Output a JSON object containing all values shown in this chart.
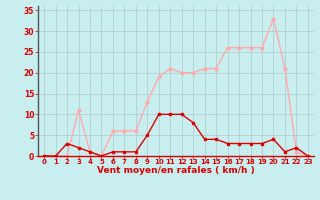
{
  "x": [
    0,
    1,
    2,
    3,
    4,
    5,
    6,
    7,
    8,
    9,
    10,
    11,
    12,
    13,
    14,
    15,
    16,
    17,
    18,
    19,
    20,
    21,
    22,
    23
  ],
  "wind_avg": [
    0,
    0,
    3,
    2,
    1,
    0,
    1,
    1,
    1,
    5,
    10,
    10,
    10,
    8,
    4,
    4,
    3,
    3,
    3,
    3,
    4,
    1,
    2,
    0
  ],
  "wind_gust": [
    0,
    0,
    0,
    11,
    1,
    0,
    6,
    6,
    6,
    13,
    19,
    21,
    20,
    20,
    21,
    21,
    26,
    26,
    26,
    26,
    33,
    21,
    1,
    0
  ],
  "background_color": "#c8eef0",
  "grid_color": "#b0c8c8",
  "line_avg_color": "#dd0000",
  "line_gust_color": "#ffaaaa",
  "xlabel": "Vent moyen/en rafales ( km/h )",
  "ylim": [
    0,
    36
  ],
  "xlim": [
    -0.5,
    23.5
  ],
  "yticks": [
    0,
    5,
    10,
    15,
    20,
    25,
    30,
    35
  ],
  "xticks": [
    0,
    1,
    2,
    3,
    4,
    5,
    6,
    7,
    8,
    9,
    10,
    11,
    12,
    13,
    14,
    15,
    16,
    17,
    18,
    19,
    20,
    21,
    22,
    23
  ],
  "tick_color": "#dd0000",
  "xlabel_color": "#dd0000",
  "xlabel_fontsize": 6.5,
  "ytick_fontsize": 5.5,
  "xtick_fontsize": 5.0
}
